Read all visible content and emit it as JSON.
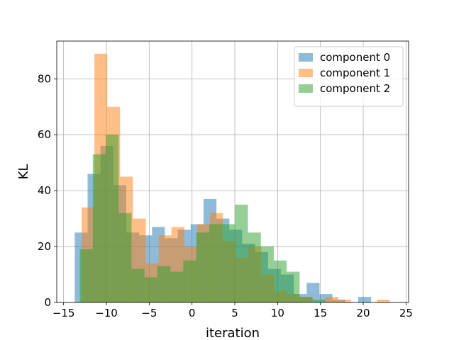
{
  "chart_data": {
    "type": "histogram",
    "title": "",
    "xlabel": "iteration",
    "ylabel": "KL",
    "xlim": [
      -15.8,
      25.3
    ],
    "ylim": [
      0,
      93.5
    ],
    "xticks": [
      -15,
      -10,
      -5,
      0,
      5,
      10,
      15,
      20,
      25
    ],
    "xtick_labels": [
      "−15",
      "−10",
      "−5",
      "0",
      "5",
      "10",
      "15",
      "20",
      "25"
    ],
    "yticks": [
      0,
      20,
      40,
      60,
      80
    ],
    "ytick_labels": [
      "0",
      "20",
      "40",
      "60",
      "80"
    ],
    "grid": true,
    "legend_position": "top-right",
    "alpha": 0.5,
    "series": [
      {
        "name": "component 0",
        "color": "#1f77b4",
        "bin_start": -13.7,
        "bin_width": 1.505,
        "counts": [
          25,
          46,
          56,
          42,
          25,
          24,
          27,
          23,
          26,
          28,
          37,
          30,
          26,
          21,
          18,
          12,
          10,
          3,
          7,
          3,
          1,
          0,
          2
        ]
      },
      {
        "name": "component 1",
        "color": "#ff7f0e",
        "bin_start": -12.9,
        "bin_width": 1.5,
        "counts": [
          34,
          89,
          70,
          45,
          30,
          14,
          24,
          27,
          20,
          28,
          32,
          22,
          16,
          20,
          10,
          4,
          3,
          2,
          0,
          2,
          1,
          0,
          0,
          1
        ]
      },
      {
        "name": "component 2",
        "color": "#2ca02c",
        "bin_start": -13.1,
        "bin_width": 1.51,
        "counts": [
          19,
          53,
          60,
          32,
          12,
          9,
          13,
          11,
          15,
          25,
          28,
          28,
          35,
          25,
          20,
          15,
          11,
          2,
          1,
          0
        ]
      }
    ]
  }
}
